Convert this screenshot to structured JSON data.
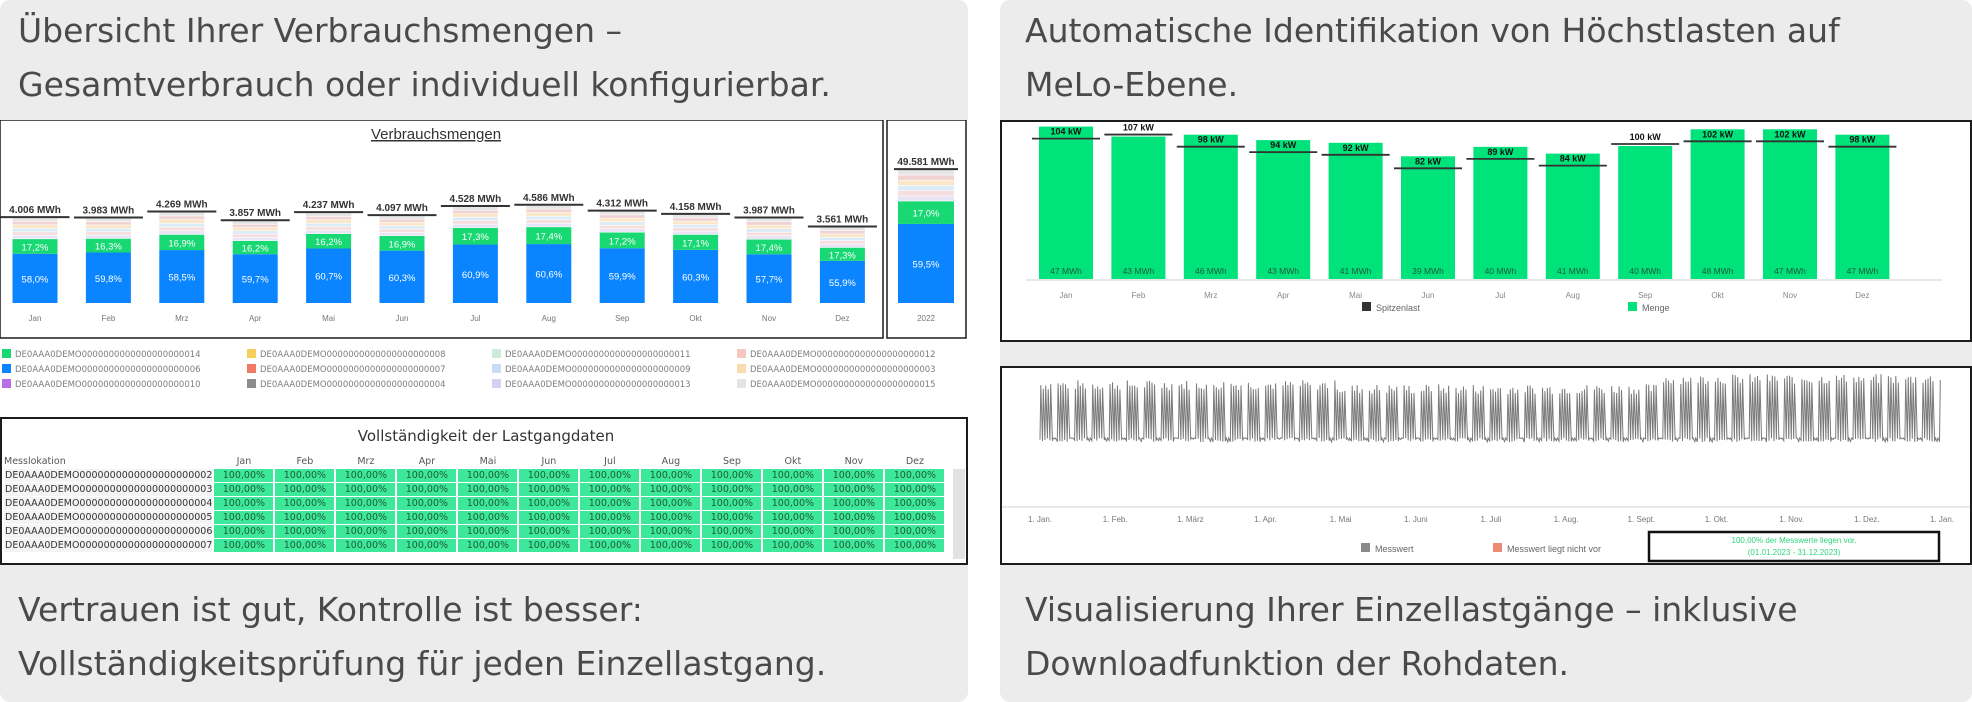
{
  "captions": {
    "top_left": [
      "Übersicht Ihrer Verbrauchsmengen –",
      "Gesamtverbrauch oder individuell konfigurierbar."
    ],
    "top_right": [
      "Automatische Identifikation von Höchstlasten auf",
      "MeLo-Ebene."
    ],
    "bottom_left": [
      "Vertrauen ist gut, Kontrolle ist besser:",
      "Vollständigkeitsprüfung für jeden Einzellastgang."
    ],
    "bottom_right": [
      "Visualisierung Ihrer Einzellastgänge – inklusive",
      "Downloadfunktion der Rohdaten."
    ]
  },
  "colors": {
    "panel_bg": "#ececec",
    "blue": "#0a84ff",
    "green": "#18d873",
    "peak_green": "#00e37a",
    "completeness_green": "#3ee89a",
    "line_gray": "#7a7a7a",
    "missing_red": "#f08a73"
  },
  "legend_volumes": [
    {
      "label": "DE0AAA0DEMO0000000000000000000014",
      "color": "#18d873"
    },
    {
      "label": "DE0AAA0DEMO0000000000000000000008",
      "color": "#f5cf5c"
    },
    {
      "label": "DE0AAA0DEMO0000000000000000000011",
      "color": "#cdebd9"
    },
    {
      "label": "DE0AAA0DEMO0000000000000000000012",
      "color": "#f5c7c0"
    },
    {
      "label": "DE0AAA0DEMO0000000000000000000006",
      "color": "#0a84ff"
    },
    {
      "label": "DE0AAA0DEMO0000000000000000000007",
      "color": "#f07a64"
    },
    {
      "label": "DE0AAA0DEMO0000000000000000000009",
      "color": "#c9dcf5"
    },
    {
      "label": "DE0AAA0DEMO0000000000000000000003",
      "color": "#f8dcb0"
    },
    {
      "label": "DE0AAA0DEMO0000000000000000000010",
      "color": "#b86ee6"
    },
    {
      "label": "DE0AAA0DEMO0000000000000000000004",
      "color": "#8c8c8c"
    },
    {
      "label": "DE0AAA0DEMO0000000000000000000013",
      "color": "#d8d0f4"
    },
    {
      "label": "DE0AAA0DEMO0000000000000000000015",
      "color": "#e4e4e4"
    }
  ],
  "completeness": {
    "title": "Vollständigkeit der Lastgangdaten",
    "first_header": "Messlokation",
    "months": [
      "Jan",
      "Feb",
      "Mrz",
      "Apr",
      "Mai",
      "Jun",
      "Jul",
      "Aug",
      "Sep",
      "Okt",
      "Nov",
      "Dez"
    ],
    "rows": [
      {
        "loc": "DE0AAA0DEMO0000000000000000000002",
        "values": [
          "100,00%",
          "100,00%",
          "100,00%",
          "100,00%",
          "100,00%",
          "100,00%",
          "100,00%",
          "100,00%",
          "100,00%",
          "100,00%",
          "100,00%",
          "100,00%"
        ]
      },
      {
        "loc": "DE0AAA0DEMO0000000000000000000003",
        "values": [
          "100,00%",
          "100,00%",
          "100,00%",
          "100,00%",
          "100,00%",
          "100,00%",
          "100,00%",
          "100,00%",
          "100,00%",
          "100,00%",
          "100,00%",
          "100,00%"
        ]
      },
      {
        "loc": "DE0AAA0DEMO0000000000000000000004",
        "values": [
          "100,00%",
          "100,00%",
          "100,00%",
          "100,00%",
          "100,00%",
          "100,00%",
          "100,00%",
          "100,00%",
          "100,00%",
          "100,00%",
          "100,00%",
          "100,00%"
        ]
      },
      {
        "loc": "DE0AAA0DEMO0000000000000000000005",
        "values": [
          "100,00%",
          "100,00%",
          "100,00%",
          "100,00%",
          "100,00%",
          "100,00%",
          "100,00%",
          "100,00%",
          "100,00%",
          "100,00%",
          "100,00%",
          "100,00%"
        ]
      },
      {
        "loc": "DE0AAA0DEMO0000000000000000000006",
        "values": [
          "100,00%",
          "100,00%",
          "100,00%",
          "100,00%",
          "100,00%",
          "100,00%",
          "100,00%",
          "100,00%",
          "100,00%",
          "100,00%",
          "100,00%",
          "100,00%"
        ]
      },
      {
        "loc": "DE0AAA0DEMO0000000000000000000007",
        "values": [
          "100,00%",
          "100,00%",
          "100,00%",
          "100,00%",
          "100,00%",
          "100,00%",
          "100,00%",
          "100,00%",
          "100,00%",
          "100,00%",
          "100,00%",
          "100,00%"
        ]
      }
    ]
  },
  "timeseries_legend": {
    "measured": "Messwert",
    "missing": "Messwert liegt nicht vor",
    "status_line1": "100,00% der Messwerte liegen vor.",
    "status_line2": "(01.01.2023 - 31.12.2023)"
  },
  "chart_data": [
    {
      "type": "bar",
      "title": "Verbrauchsmengen",
      "categories": [
        "Jan",
        "Feb",
        "Mrz",
        "Apr",
        "Mai",
        "Jun",
        "Jul",
        "Aug",
        "Sep",
        "Okt",
        "Nov",
        "Dez"
      ],
      "totals": [
        4006,
        3983,
        4269,
        3857,
        4237,
        4097,
        4528,
        4586,
        4312,
        4158,
        3987,
        3561
      ],
      "total_labels": [
        "4.006 MWh",
        "3.983 MWh",
        "4.269 MWh",
        "3.857 MWh",
        "4.237 MWh",
        "4.097 MWh",
        "4.528 MWh",
        "4.586 MWh",
        "4.312 MWh",
        "4.158 MWh",
        "3.987 MWh",
        "3.561 MWh"
      ],
      "share_blue_pct": [
        58.0,
        59.8,
        58.5,
        59.7,
        60.7,
        60.3,
        60.9,
        60.6,
        59.9,
        60.3,
        57.7,
        55.9
      ],
      "share_blue_labels": [
        "58,0%",
        "59,8%",
        "58,5%",
        "59,7%",
        "60,7%",
        "60,3%",
        "60,9%",
        "60,6%",
        "59,9%",
        "60,3%",
        "57,7%",
        "55,9%"
      ],
      "share_green_pct": [
        17.2,
        16.3,
        16.9,
        16.2,
        16.2,
        16.9,
        17.3,
        17.4,
        17.2,
        17.1,
        17.4,
        17.3
      ],
      "share_green_labels": [
        "17,2%",
        "16,3%",
        "16,9%",
        "16,2%",
        "16,2%",
        "16,9%",
        "17,3%",
        "17,4%",
        "17,2%",
        "17,1%",
        "17,4%",
        "17,3%"
      ],
      "annual": {
        "category": "2022",
        "total": 49581,
        "total_label": "49.581 MWh",
        "share_blue_pct": 59.5,
        "share_blue_label": "59,5%",
        "share_green_pct": 17.0,
        "share_green_label": "17,0%"
      }
    },
    {
      "type": "bar",
      "categories": [
        "Jan",
        "Feb",
        "Mrz",
        "Apr",
        "Mai",
        "Jun",
        "Jul",
        "Aug",
        "Sep",
        "Okt",
        "Nov",
        "Dez"
      ],
      "series": [
        {
          "name": "Menge",
          "values": [
            47,
            43,
            46,
            43,
            41,
            39,
            40,
            41,
            40,
            48,
            47,
            47
          ],
          "labels": [
            "47 MWh",
            "43 MWh",
            "46 MWh",
            "43 MWh",
            "41 MWh",
            "39 MWh",
            "40 MWh",
            "41 MWh",
            "40 MWh",
            "48 MWh",
            "47 MWh",
            "47 MWh"
          ]
        },
        {
          "name": "Spitzenlast",
          "values": [
            104,
            107,
            98,
            94,
            92,
            82,
            89,
            84,
            100,
            102,
            102,
            98
          ],
          "labels": [
            "104 kW",
            "107 kW",
            "98 kW",
            "94 kW",
            "92 kW",
            "82 kW",
            "89 kW",
            "84 kW",
            "100 kW",
            "102 kW",
            "102 kW",
            "98 kW"
          ]
        }
      ],
      "ylim": [
        0,
        110
      ]
    },
    {
      "type": "line",
      "xticks": [
        "1. Jan.",
        "1. Feb.",
        "1. März",
        "1. Apr.",
        "1. Mai",
        "1. Juni",
        "1. Juli",
        "1. Aug.",
        "1. Sept.",
        "1. Okt.",
        "1. Nov.",
        "1. Dez.",
        "1. Jan."
      ],
      "series": [
        {
          "name": "Messwert"
        }
      ]
    }
  ]
}
